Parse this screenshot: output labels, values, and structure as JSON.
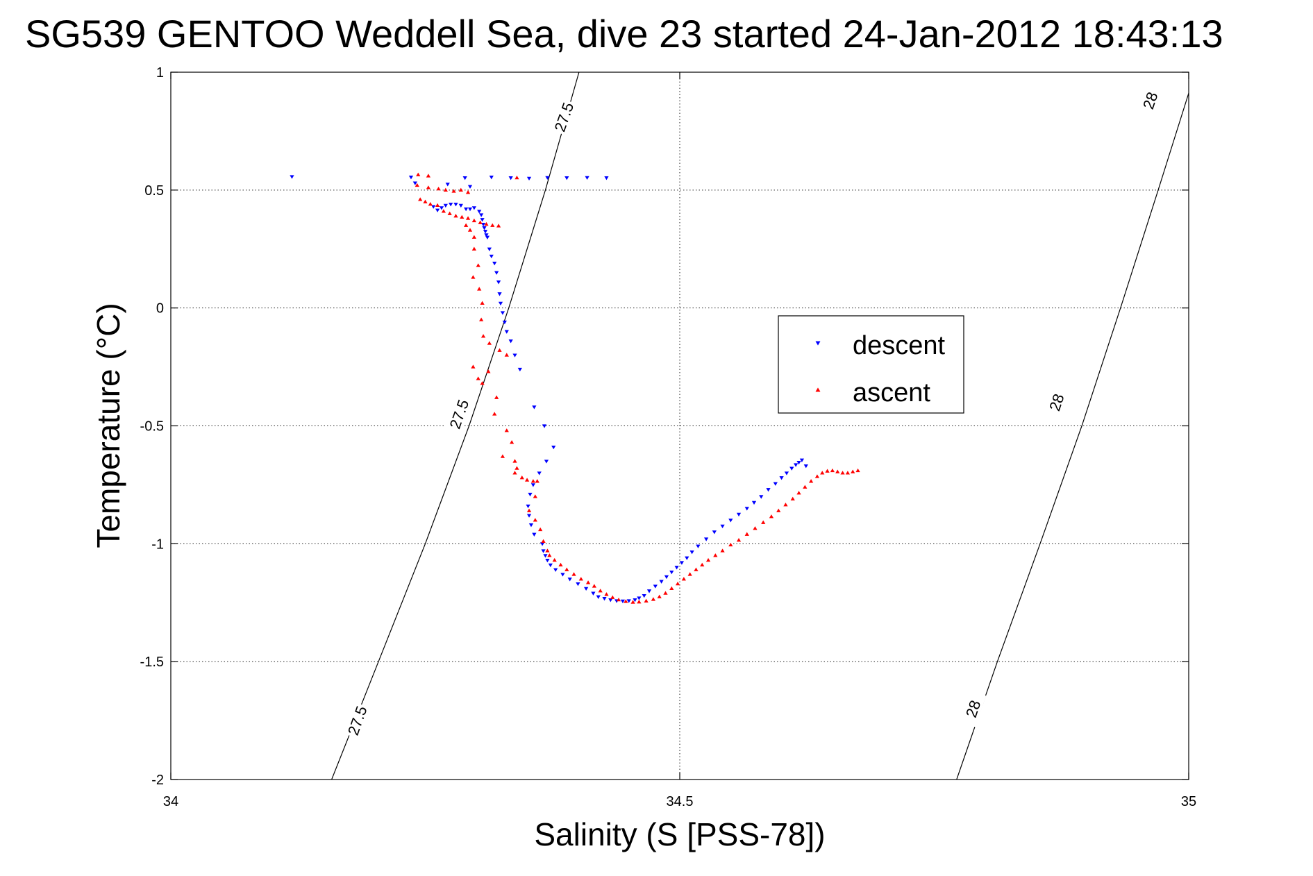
{
  "chart_data": {
    "type": "scatter",
    "title": "SG539 GENTOO Weddell Sea, dive 23 started 24-Jan-2012 18:43:13",
    "xlabel": "Salinity (S [PSS-78])",
    "ylabel": "Temperature (°C)",
    "xlim": [
      34,
      35
    ],
    "ylim": [
      -2,
      1
    ],
    "xticks": [
      {
        "value": 34,
        "label": "34"
      },
      {
        "value": 34.5,
        "label": "34.5"
      },
      {
        "value": 35,
        "label": "35"
      }
    ],
    "yticks": [
      {
        "value": 1,
        "label": "1"
      },
      {
        "value": 0.5,
        "label": "0.5"
      },
      {
        "value": 0,
        "label": "0"
      },
      {
        "value": -0.5,
        "label": "-0.5"
      },
      {
        "value": -1,
        "label": "-1"
      },
      {
        "value": -1.5,
        "label": "-1.5"
      },
      {
        "value": -2,
        "label": "-2"
      }
    ],
    "grid": true,
    "legend_position": "right-center",
    "legend": [
      {
        "label": "descent",
        "color": "#0000ff",
        "marker": "triangle-down"
      },
      {
        "label": "ascent",
        "color": "#ff0000",
        "marker": "triangle-up"
      }
    ],
    "density_contours": [
      {
        "label": "27.5",
        "points": [
          [
            34.158,
            -2.0
          ],
          [
            34.204,
            -1.5
          ],
          [
            34.25,
            -1.0
          ],
          [
            34.293,
            -0.5
          ],
          [
            34.332,
            0.0
          ],
          [
            34.368,
            0.5
          ],
          [
            34.401,
            1.0
          ]
        ],
        "label_positions": [
          [
            34.183,
            -1.75
          ],
          [
            34.283,
            -0.45
          ],
          [
            34.386,
            0.81
          ]
        ]
      },
      {
        "label": "28",
        "points": [
          [
            34.772,
            -2.0
          ],
          [
            34.812,
            -1.5
          ],
          [
            34.854,
            -1.0
          ],
          [
            34.895,
            -0.5
          ],
          [
            34.933,
            0.0
          ],
          [
            34.97,
            0.5
          ],
          [
            35.005,
            0.98
          ]
        ],
        "label_positions": [
          [
            34.788,
            -1.7
          ],
          [
            34.87,
            -0.4
          ],
          [
            34.962,
            0.88
          ]
        ]
      }
    ],
    "series": [
      {
        "name": "descent",
        "color": "#0000ff",
        "marker": "triangle-down",
        "points": [
          [
            34.119,
            0.557
          ],
          [
            34.236,
            0.555
          ],
          [
            34.289,
            0.552
          ],
          [
            34.315,
            0.555
          ],
          [
            34.334,
            0.552
          ],
          [
            34.352,
            0.55
          ],
          [
            34.37,
            0.553
          ],
          [
            34.389,
            0.552
          ],
          [
            34.409,
            0.553
          ],
          [
            34.428,
            0.552
          ],
          [
            34.24,
            0.53
          ],
          [
            34.272,
            0.525
          ],
          [
            34.294,
            0.515
          ],
          [
            34.258,
            0.43
          ],
          [
            34.262,
            0.415
          ],
          [
            34.266,
            0.425
          ],
          [
            34.27,
            0.435
          ],
          [
            34.275,
            0.44
          ],
          [
            34.28,
            0.44
          ],
          [
            34.285,
            0.435
          ],
          [
            34.29,
            0.42
          ],
          [
            34.294,
            0.42
          ],
          [
            34.298,
            0.425
          ],
          [
            34.303,
            0.41
          ],
          [
            34.305,
            0.395
          ],
          [
            34.306,
            0.375
          ],
          [
            34.307,
            0.355
          ],
          [
            34.308,
            0.34
          ],
          [
            34.309,
            0.325
          ],
          [
            34.31,
            0.31
          ],
          [
            34.311,
            0.3
          ],
          [
            34.313,
            0.25
          ],
          [
            34.315,
            0.22
          ],
          [
            34.318,
            0.19
          ],
          [
            34.32,
            0.15
          ],
          [
            34.322,
            0.11
          ],
          [
            34.323,
            0.06
          ],
          [
            34.324,
            0.02
          ],
          [
            34.326,
            -0.02
          ],
          [
            34.328,
            -0.06
          ],
          [
            34.33,
            -0.1
          ],
          [
            34.334,
            -0.14
          ],
          [
            34.338,
            -0.2
          ],
          [
            34.343,
            -0.26
          ],
          [
            34.357,
            -0.42
          ],
          [
            34.367,
            -0.5
          ],
          [
            34.376,
            -0.59
          ],
          [
            34.369,
            -0.65
          ],
          [
            34.362,
            -0.7
          ],
          [
            34.356,
            -0.75
          ],
          [
            34.353,
            -0.79
          ],
          [
            34.351,
            -0.84
          ],
          [
            34.352,
            -0.88
          ],
          [
            34.354,
            -0.92
          ],
          [
            34.357,
            -0.96
          ],
          [
            34.365,
            -1.0
          ],
          [
            34.366,
            -1.03
          ],
          [
            34.368,
            -1.05
          ],
          [
            34.37,
            -1.07
          ],
          [
            34.373,
            -1.09
          ],
          [
            34.378,
            -1.11
          ],
          [
            34.385,
            -1.13
          ],
          [
            34.392,
            -1.15
          ],
          [
            34.4,
            -1.17
          ],
          [
            34.408,
            -1.19
          ],
          [
            34.415,
            -1.21
          ],
          [
            34.42,
            -1.225
          ],
          [
            34.426,
            -1.232
          ],
          [
            34.432,
            -1.238
          ],
          [
            34.438,
            -1.242
          ],
          [
            34.444,
            -1.243
          ],
          [
            34.45,
            -1.242
          ],
          [
            34.456,
            -1.238
          ],
          [
            34.46,
            -1.23
          ],
          [
            34.465,
            -1.22
          ],
          [
            34.47,
            -1.2
          ],
          [
            34.476,
            -1.18
          ],
          [
            34.482,
            -1.16
          ],
          [
            34.487,
            -1.14
          ],
          [
            34.492,
            -1.12
          ],
          [
            34.497,
            -1.1
          ],
          [
            34.502,
            -1.08
          ],
          [
            34.507,
            -1.06
          ],
          [
            34.512,
            -1.035
          ],
          [
            34.518,
            -1.01
          ],
          [
            34.526,
            -0.98
          ],
          [
            34.534,
            -0.95
          ],
          [
            34.542,
            -0.925
          ],
          [
            34.55,
            -0.9
          ],
          [
            34.558,
            -0.875
          ],
          [
            34.566,
            -0.85
          ],
          [
            34.573,
            -0.825
          ],
          [
            34.58,
            -0.8
          ],
          [
            34.587,
            -0.77
          ],
          [
            34.594,
            -0.745
          ],
          [
            34.6,
            -0.72
          ],
          [
            34.605,
            -0.7
          ],
          [
            34.61,
            -0.68
          ],
          [
            34.614,
            -0.665
          ],
          [
            34.617,
            -0.655
          ],
          [
            34.62,
            -0.645
          ],
          [
            34.624,
            -0.67
          ]
        ]
      },
      {
        "name": "ascent",
        "color": "#ff0000",
        "marker": "triangle-up",
        "points": [
          [
            34.243,
            0.565
          ],
          [
            34.253,
            0.56
          ],
          [
            34.34,
            0.552
          ],
          [
            34.242,
            0.52
          ],
          [
            34.253,
            0.51
          ],
          [
            34.263,
            0.505
          ],
          [
            34.27,
            0.5
          ],
          [
            34.278,
            0.495
          ],
          [
            34.285,
            0.5
          ],
          [
            34.292,
            0.49
          ],
          [
            34.245,
            0.46
          ],
          [
            34.25,
            0.45
          ],
          [
            34.255,
            0.44
          ],
          [
            34.262,
            0.435
          ],
          [
            34.268,
            0.41
          ],
          [
            34.274,
            0.4
          ],
          [
            34.28,
            0.39
          ],
          [
            34.286,
            0.385
          ],
          [
            34.292,
            0.38
          ],
          [
            34.298,
            0.37
          ],
          [
            34.304,
            0.362
          ],
          [
            34.31,
            0.355
          ],
          [
            34.316,
            0.35
          ],
          [
            34.322,
            0.348
          ],
          [
            34.29,
            0.35
          ],
          [
            34.294,
            0.33
          ],
          [
            34.298,
            0.3
          ],
          [
            34.298,
            0.25
          ],
          [
            34.302,
            0.18
          ],
          [
            34.297,
            0.13
          ],
          [
            34.303,
            0.08
          ],
          [
            34.306,
            0.02
          ],
          [
            34.305,
            -0.05
          ],
          [
            34.307,
            -0.12
          ],
          [
            34.313,
            -0.15
          ],
          [
            34.323,
            -0.18
          ],
          [
            34.33,
            -0.2
          ],
          [
            34.297,
            -0.25
          ],
          [
            34.312,
            -0.27
          ],
          [
            34.302,
            -0.3
          ],
          [
            34.306,
            -0.32
          ],
          [
            34.32,
            -0.38
          ],
          [
            34.318,
            -0.45
          ],
          [
            34.33,
            -0.52
          ],
          [
            34.335,
            -0.57
          ],
          [
            34.326,
            -0.63
          ],
          [
            34.338,
            -0.65
          ],
          [
            34.34,
            -0.68
          ],
          [
            34.338,
            -0.7
          ],
          [
            34.345,
            -0.72
          ],
          [
            34.35,
            -0.73
          ],
          [
            34.356,
            -0.735
          ],
          [
            34.36,
            -0.735
          ],
          [
            34.358,
            -0.8
          ],
          [
            34.352,
            -0.86
          ],
          [
            34.358,
            -0.9
          ],
          [
            34.363,
            -0.94
          ],
          [
            34.366,
            -0.99
          ],
          [
            34.37,
            -1.03
          ],
          [
            34.372,
            -1.05
          ],
          [
            34.377,
            -1.07
          ],
          [
            34.383,
            -1.09
          ],
          [
            34.389,
            -1.11
          ],
          [
            34.396,
            -1.13
          ],
          [
            34.403,
            -1.15
          ],
          [
            34.41,
            -1.165
          ],
          [
            34.416,
            -1.18
          ],
          [
            34.422,
            -1.2
          ],
          [
            34.428,
            -1.215
          ],
          [
            34.434,
            -1.228
          ],
          [
            34.44,
            -1.238
          ],
          [
            34.447,
            -1.245
          ],
          [
            34.454,
            -1.248
          ],
          [
            34.46,
            -1.247
          ],
          [
            34.467,
            -1.243
          ],
          [
            34.474,
            -1.236
          ],
          [
            34.48,
            -1.225
          ],
          [
            34.486,
            -1.21
          ],
          [
            34.492,
            -1.19
          ],
          [
            34.498,
            -1.17
          ],
          [
            34.504,
            -1.15
          ],
          [
            34.51,
            -1.13
          ],
          [
            34.516,
            -1.11
          ],
          [
            34.522,
            -1.09
          ],
          [
            34.528,
            -1.07
          ],
          [
            34.535,
            -1.05
          ],
          [
            34.542,
            -1.03
          ],
          [
            34.55,
            -1.005
          ],
          [
            34.558,
            -0.985
          ],
          [
            34.566,
            -0.96
          ],
          [
            34.574,
            -0.935
          ],
          [
            34.582,
            -0.91
          ],
          [
            34.59,
            -0.885
          ],
          [
            34.597,
            -0.86
          ],
          [
            34.604,
            -0.835
          ],
          [
            34.611,
            -0.81
          ],
          [
            34.617,
            -0.785
          ],
          [
            34.623,
            -0.76
          ],
          [
            34.629,
            -0.735
          ],
          [
            34.635,
            -0.715
          ],
          [
            34.64,
            -0.7
          ],
          [
            34.645,
            -0.692
          ],
          [
            34.65,
            -0.69
          ],
          [
            34.655,
            -0.695
          ],
          [
            34.66,
            -0.7
          ],
          [
            34.665,
            -0.7
          ],
          [
            34.67,
            -0.695
          ],
          [
            34.675,
            -0.69
          ]
        ]
      }
    ]
  }
}
